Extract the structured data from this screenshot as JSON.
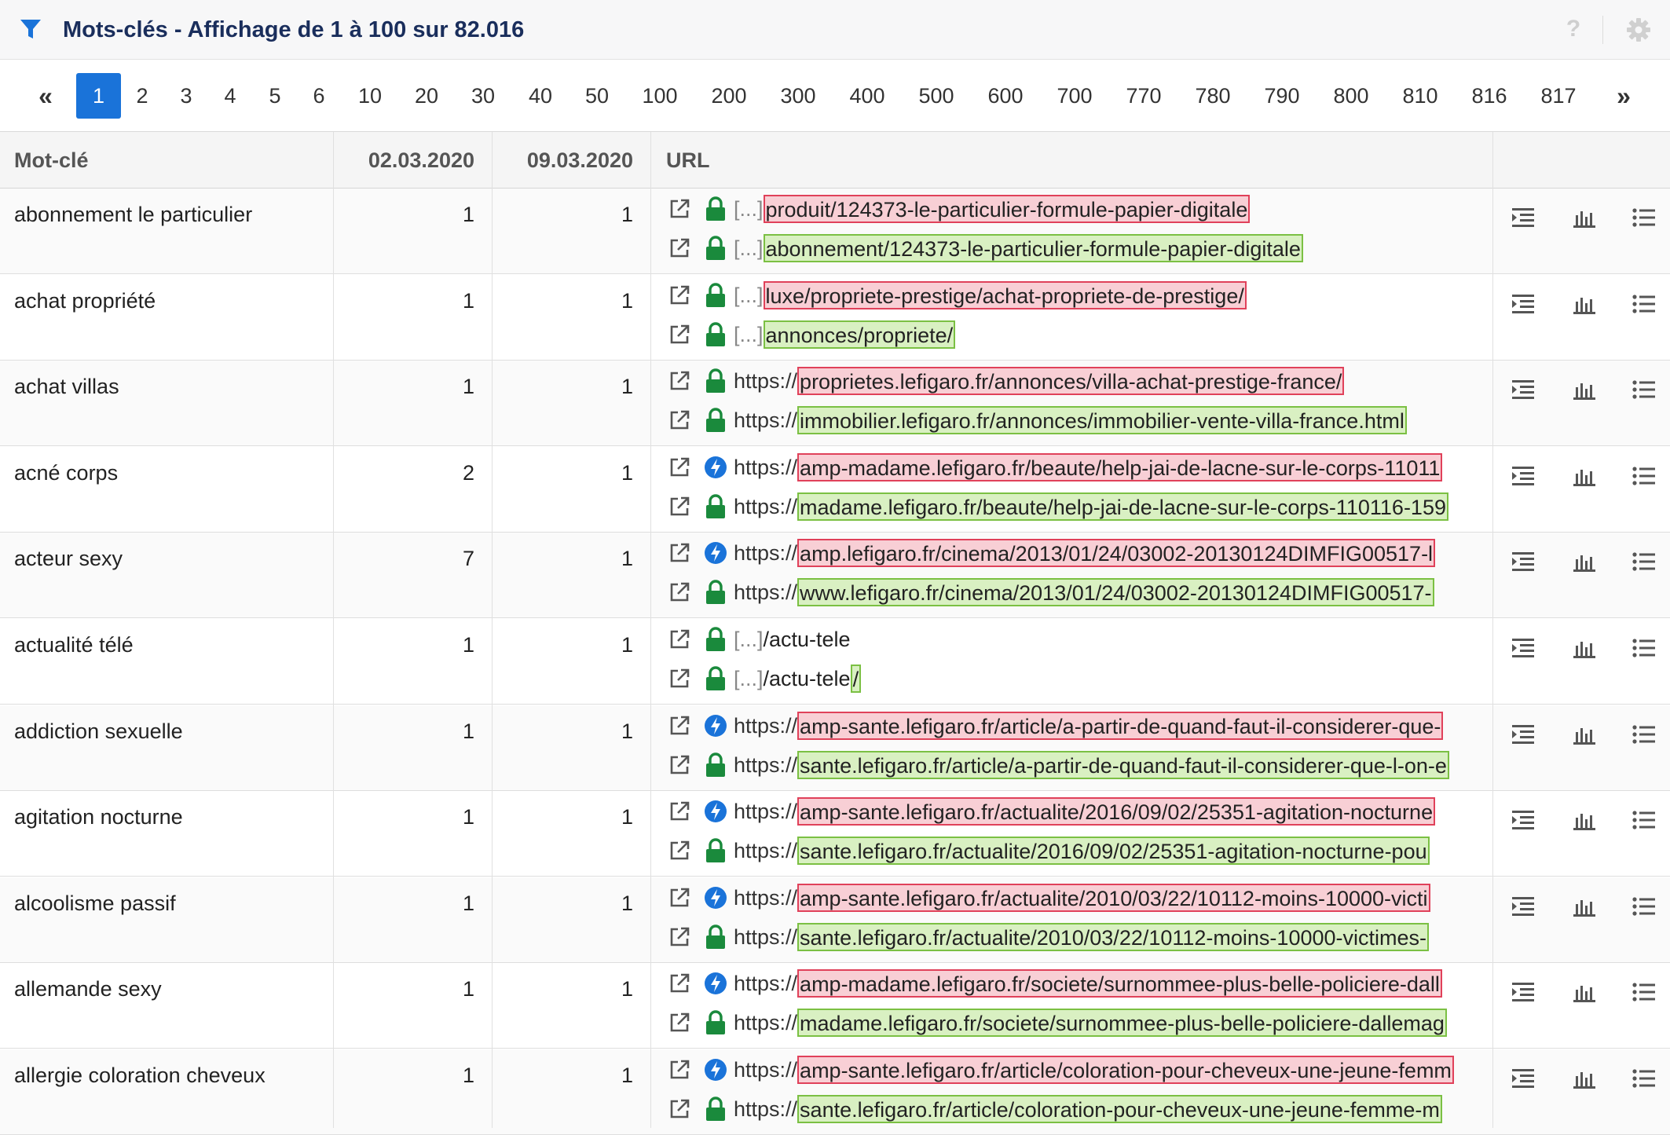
{
  "header": {
    "title": "Mots-clés - Affichage de 1 à 100 sur 82.016",
    "help_label": "?",
    "filter_icon": "filter-icon",
    "gear_icon": "gear-icon"
  },
  "colors": {
    "accent": "#1a73d9",
    "title": "#1a2e5c",
    "removed_bg": "#f8cfd5",
    "removed_border": "#e0415a",
    "added_bg": "#d9f0c2",
    "added_border": "#7bc043",
    "lock": "#1a8a3c",
    "amp": "#1a73d9"
  },
  "pagination": {
    "first_label": "«",
    "last_label": "»",
    "active_page": "1",
    "pages": [
      "1",
      "2",
      "3",
      "4",
      "5",
      "6",
      "10",
      "20",
      "30",
      "40",
      "50",
      "100",
      "200",
      "300",
      "400",
      "500",
      "600",
      "700",
      "770",
      "780",
      "790",
      "800",
      "810",
      "816",
      "817"
    ]
  },
  "table": {
    "columns": {
      "keyword": "Mot-clé",
      "date1": "02.03.2020",
      "date2": "09.03.2020",
      "url": "URL"
    },
    "rows": [
      {
        "keyword": "abonnement le particulier",
        "pos1": "1",
        "pos2": "1",
        "url1": {
          "type": "lock",
          "prefix": "[...]",
          "diff": "produit/124373-le-particulier-formule-papier-digitale",
          "rest": ""
        },
        "url2": {
          "type": "lock",
          "prefix": "[...]",
          "diff": "abonnement/124373-le-particulier-formule-papier-digitale",
          "rest": ""
        }
      },
      {
        "keyword": "achat propriété",
        "pos1": "1",
        "pos2": "1",
        "url1": {
          "type": "lock",
          "prefix": "[...]",
          "diff": "luxe/propriete-prestige/achat-propriete-de-prestige/",
          "rest": ""
        },
        "url2": {
          "type": "lock",
          "prefix": "[...]",
          "diff": "annonces/propriete/",
          "rest": ""
        }
      },
      {
        "keyword": "achat villas",
        "pos1": "1",
        "pos2": "1",
        "url1": {
          "type": "lock",
          "prefix": "https://",
          "diff": "proprietes.lefigaro.fr/annonces/villa-achat-prestige-france/",
          "rest": ""
        },
        "url2": {
          "type": "lock",
          "prefix": "https://",
          "diff": "immobilier.lefigaro.fr/annonces/immobilier-vente-villa-france.html",
          "rest": ""
        }
      },
      {
        "keyword": "acné corps",
        "pos1": "2",
        "pos2": "1",
        "url1": {
          "type": "amp",
          "prefix": "https://",
          "diff": "amp-madame.lefigaro.fr/beaute/help-jai-de-lacne-sur-le-corps-11011",
          "rest": ""
        },
        "url2": {
          "type": "lock",
          "prefix": "https://",
          "diff": "madame.lefigaro.fr/beaute/help-jai-de-lacne-sur-le-corps-110116-159",
          "rest": ""
        }
      },
      {
        "keyword": "acteur sexy",
        "pos1": "7",
        "pos2": "1",
        "url1": {
          "type": "amp",
          "prefix": "https://",
          "diff": "amp.lefigaro.fr/cinema/2013/01/24/03002-20130124DIMFIG00517-l",
          "rest": ""
        },
        "url2": {
          "type": "lock",
          "prefix": "https://",
          "diff": "www.lefigaro.fr/cinema/2013/01/24/03002-20130124DIMFIG00517-",
          "rest": ""
        }
      },
      {
        "keyword": "actualité télé",
        "pos1": "1",
        "pos2": "1",
        "url1": {
          "type": "lock",
          "prefix": "[...]",
          "diff": "",
          "rest": "/actu-tele"
        },
        "url2": {
          "type": "lock",
          "prefix": "[...]",
          "pre_rest": "/actu-tele",
          "diff": "/",
          "rest": ""
        }
      },
      {
        "keyword": "addiction sexuelle",
        "pos1": "1",
        "pos2": "1",
        "url1": {
          "type": "amp",
          "prefix": "https://",
          "diff": "amp-sante.lefigaro.fr/article/a-partir-de-quand-faut-il-considerer-que-",
          "rest": ""
        },
        "url2": {
          "type": "lock",
          "prefix": "https://",
          "diff": "sante.lefigaro.fr/article/a-partir-de-quand-faut-il-considerer-que-l-on-e",
          "rest": ""
        }
      },
      {
        "keyword": "agitation nocturne",
        "pos1": "1",
        "pos2": "1",
        "url1": {
          "type": "amp",
          "prefix": "https://",
          "diff": "amp-sante.lefigaro.fr/actualite/2016/09/02/25351-agitation-nocturne",
          "rest": ""
        },
        "url2": {
          "type": "lock",
          "prefix": "https://",
          "diff": "sante.lefigaro.fr/actualite/2016/09/02/25351-agitation-nocturne-pou",
          "rest": ""
        }
      },
      {
        "keyword": "alcoolisme passif",
        "pos1": "1",
        "pos2": "1",
        "url1": {
          "type": "amp",
          "prefix": "https://",
          "diff": "amp-sante.lefigaro.fr/actualite/2010/03/22/10112-moins-10000-victi",
          "rest": ""
        },
        "url2": {
          "type": "lock",
          "prefix": "https://",
          "diff": "sante.lefigaro.fr/actualite/2010/03/22/10112-moins-10000-victimes-",
          "rest": ""
        }
      },
      {
        "keyword": "allemande sexy",
        "pos1": "1",
        "pos2": "1",
        "url1": {
          "type": "amp",
          "prefix": "https://",
          "diff": "amp-madame.lefigaro.fr/societe/surnommee-plus-belle-policiere-dall",
          "rest": ""
        },
        "url2": {
          "type": "lock",
          "prefix": "https://",
          "diff": "madame.lefigaro.fr/societe/surnommee-plus-belle-policiere-dallemag",
          "rest": ""
        }
      },
      {
        "keyword": "allergie coloration cheveux",
        "pos1": "1",
        "pos2": "1",
        "url1": {
          "type": "amp",
          "prefix": "https://",
          "diff": "amp-sante.lefigaro.fr/article/coloration-pour-cheveux-une-jeune-femm",
          "rest": ""
        },
        "url2": {
          "type": "lock",
          "prefix": "https://",
          "diff": "sante.lefigaro.fr/article/coloration-pour-cheveux-une-jeune-femme-m",
          "rest": ""
        }
      }
    ]
  }
}
